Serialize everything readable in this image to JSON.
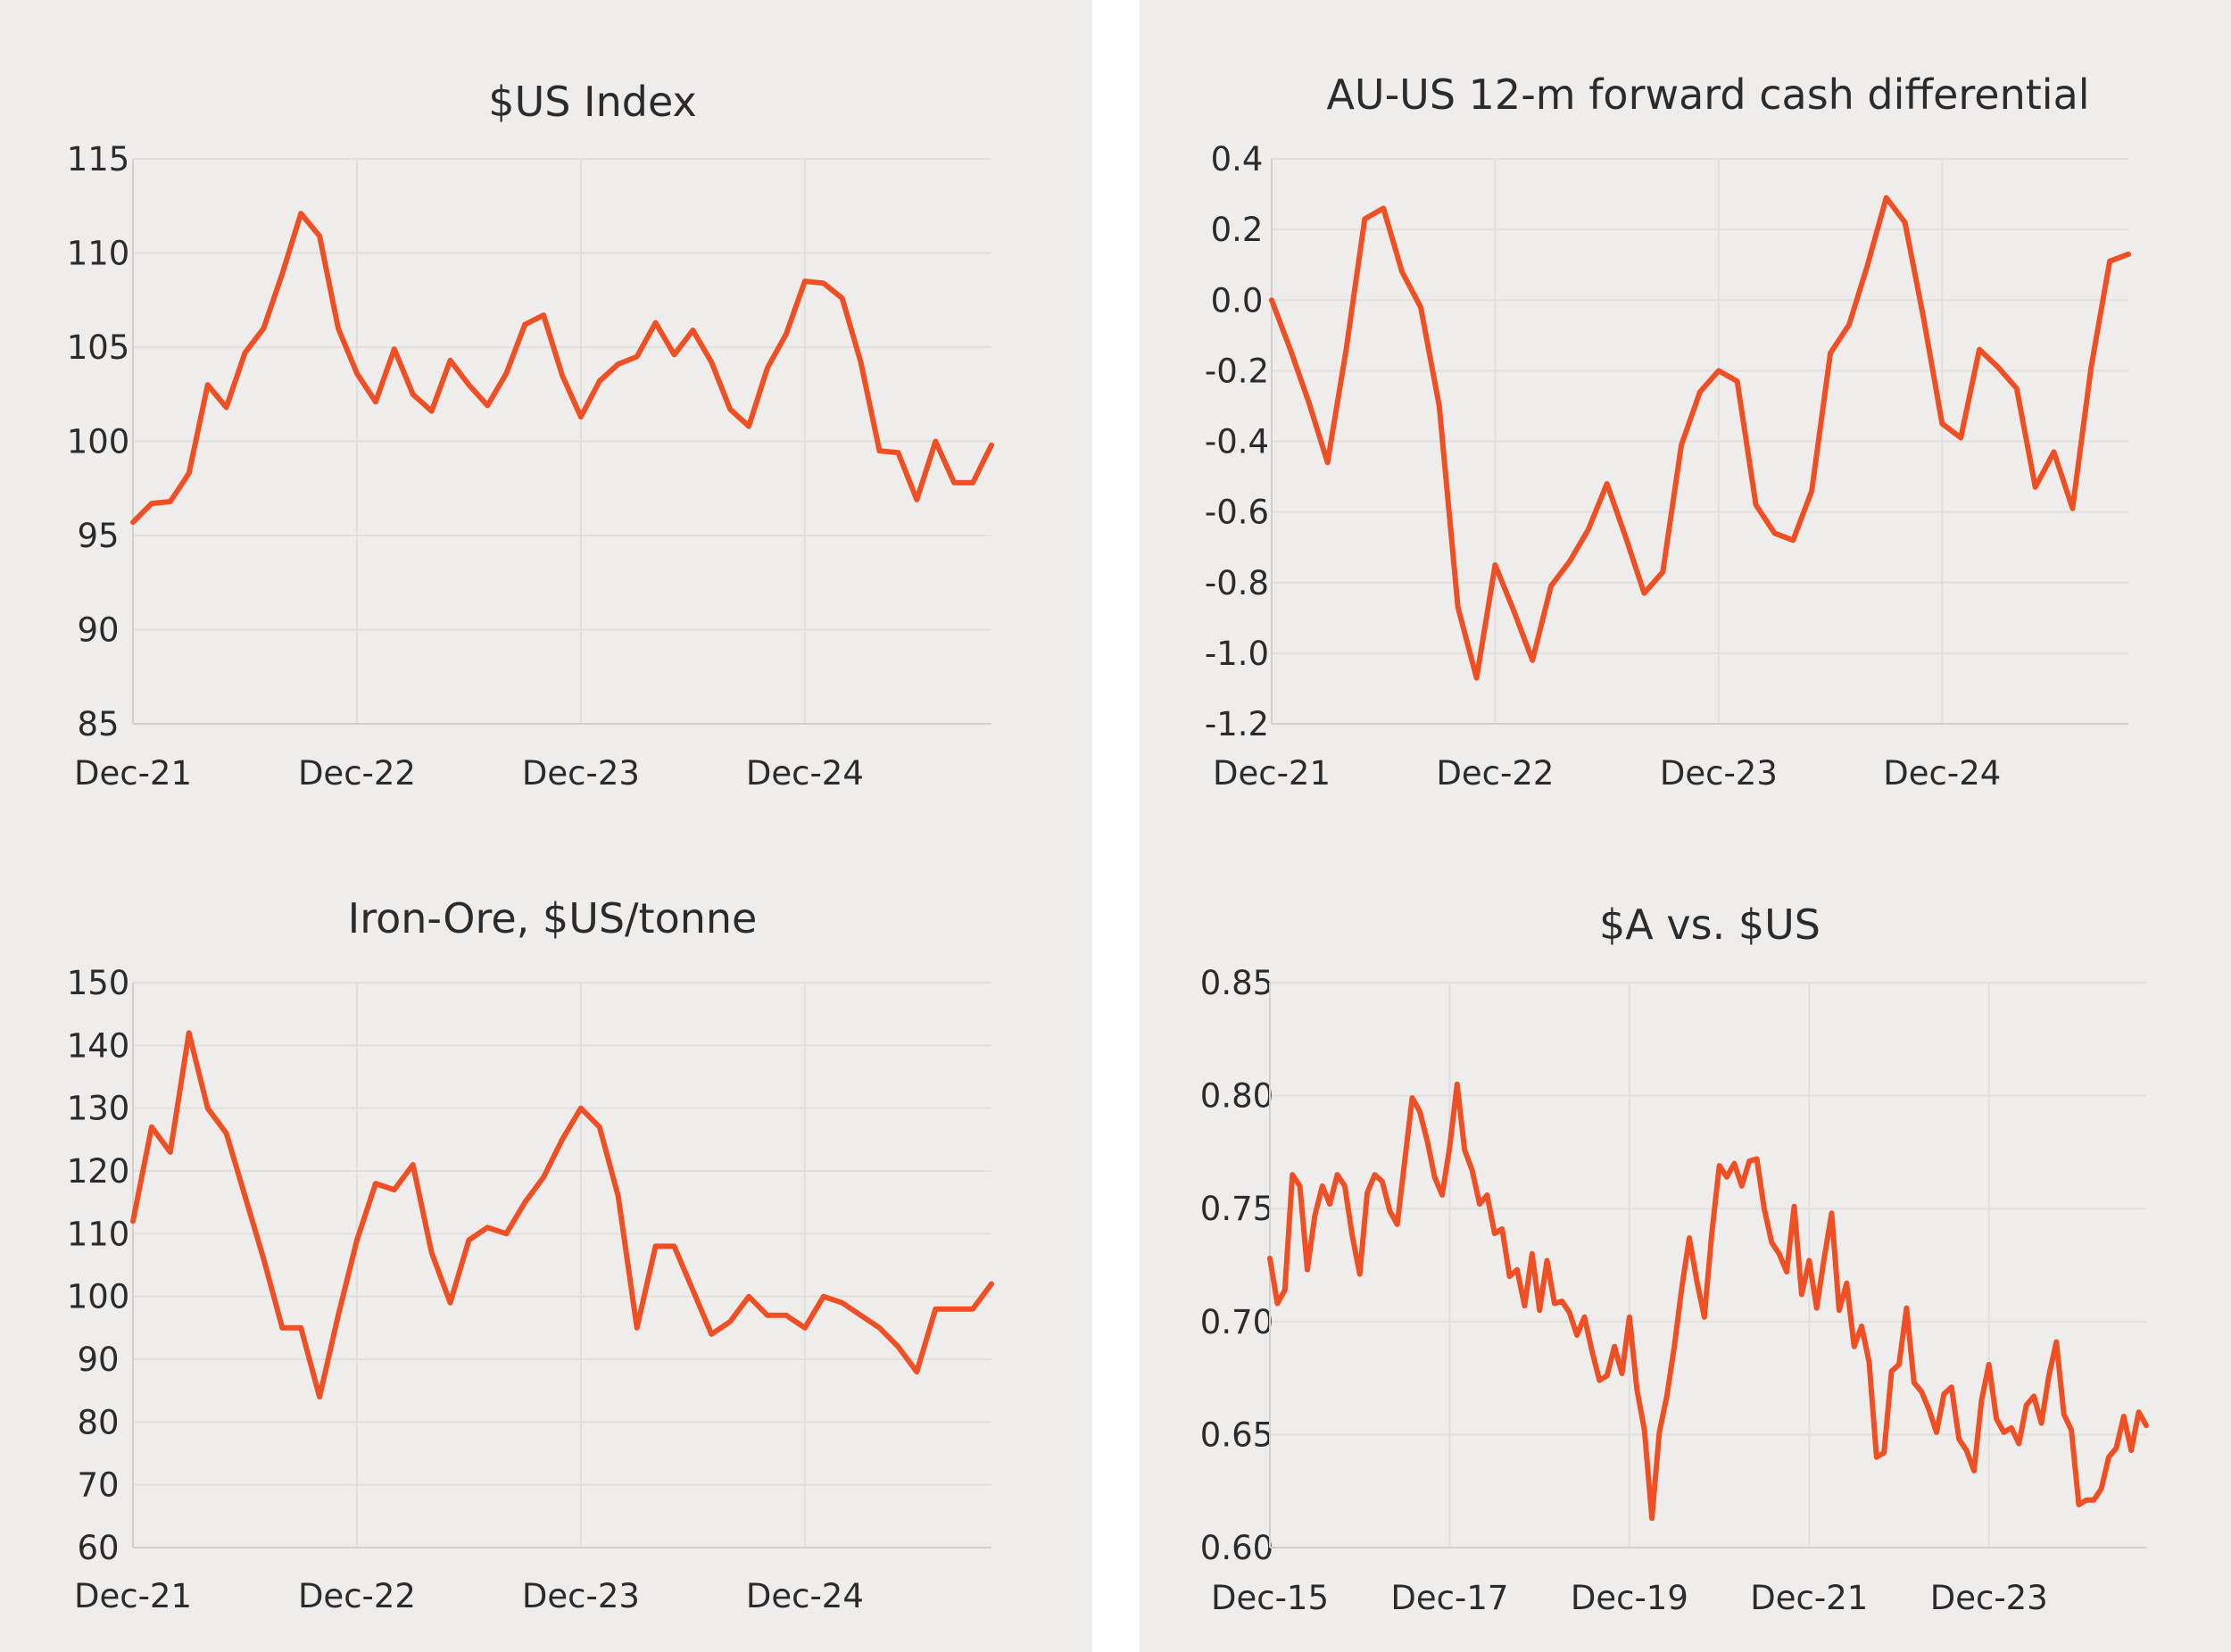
{
  "colors": {
    "line": "#f04e23",
    "panel": "#efedec",
    "text": "#2b2b2b",
    "grid": "#e1dfde"
  },
  "chart_data": [
    {
      "type": "line",
      "title": "$US Index",
      "xlabel": "",
      "ylabel": "",
      "ylim": [
        85,
        115
      ],
      "yticks": [
        "115",
        "110",
        "105",
        "100",
        "95",
        "90",
        "85"
      ],
      "xticks": [
        "Dec-21",
        "Dec-22",
        "Dec-23",
        "Dec-24"
      ],
      "x_range_months": [
        0,
        46
      ],
      "series": [
        {
          "name": "$US Index",
          "values": [
            95.7,
            96.7,
            96.8,
            98.3,
            103.0,
            101.8,
            104.7,
            106.0,
            108.9,
            112.1,
            110.9,
            106.0,
            103.6,
            102.1,
            104.9,
            102.5,
            101.6,
            104.3,
            103.0,
            101.9,
            103.6,
            106.2,
            106.7,
            103.5,
            101.3,
            103.2,
            104.1,
            104.5,
            106.3,
            104.6,
            105.9,
            104.2,
            101.7,
            100.8,
            103.9,
            105.7,
            108.5,
            108.4,
            107.6,
            104.2,
            99.5,
            99.4,
            96.9,
            100.0,
            97.8,
            97.8,
            99.8
          ]
        }
      ]
    },
    {
      "type": "line",
      "title": "AU-US 12-m forward cash differential",
      "xlabel": "",
      "ylabel": "",
      "ylim": [
        -1.2,
        0.4
      ],
      "yticks": [
        "0.4",
        "0.2",
        "0.0",
        "-0.2",
        "-0.4",
        "-0.6",
        "-0.8",
        "-1.0",
        "-1.2"
      ],
      "xticks": [
        "Dec-21",
        "Dec-22",
        "Dec-23",
        "Dec-24"
      ],
      "x_range_months": [
        0,
        46
      ],
      "series": [
        {
          "name": "AU-US 12-m forward cash differential",
          "values": [
            0.0,
            -0.14,
            -0.29,
            -0.46,
            -0.14,
            0.23,
            0.26,
            0.08,
            -0.02,
            -0.3,
            -0.87,
            -1.07,
            -0.75,
            -0.88,
            -1.02,
            -0.81,
            -0.74,
            -0.65,
            -0.52,
            -0.67,
            -0.83,
            -0.77,
            -0.41,
            -0.26,
            -0.2,
            -0.23,
            -0.58,
            -0.66,
            -0.68,
            -0.54,
            -0.15,
            -0.07,
            0.1,
            0.29,
            0.22,
            -0.05,
            -0.35,
            -0.39,
            -0.14,
            -0.19,
            -0.25,
            -0.53,
            -0.43,
            -0.59,
            -0.19,
            0.11,
            0.13
          ]
        }
      ]
    },
    {
      "type": "line",
      "title": "Iron-Ore, $US/tonne",
      "xlabel": "",
      "ylabel": "",
      "ylim": [
        60,
        150
      ],
      "yticks": [
        "150",
        "140",
        "130",
        "120",
        "110",
        "100",
        "90",
        "80",
        "70",
        "60"
      ],
      "xticks": [
        "Dec-21",
        "Dec-22",
        "Dec-23",
        "Dec-24"
      ],
      "x_range_months": [
        0,
        46
      ],
      "series": [
        {
          "name": "Iron-Ore",
          "values": [
            112,
            127,
            123,
            142,
            130,
            126,
            116,
            106,
            95,
            95,
            84,
            97,
            109,
            118,
            117,
            121,
            107,
            99,
            109,
            111,
            110,
            115,
            119,
            125,
            130,
            127,
            116,
            95,
            108,
            108,
            101,
            94,
            96,
            100,
            97,
            97,
            95,
            100,
            99,
            97,
            95,
            92,
            88,
            98,
            98,
            98,
            102
          ]
        }
      ]
    },
    {
      "type": "line",
      "title": "$A vs. $US",
      "xlabel": "",
      "ylabel": "",
      "ylim": [
        0.6,
        0.85
      ],
      "yticks": [
        "0.85",
        "0.80",
        "0.75",
        "0.70",
        "0.65",
        "0.60"
      ],
      "xticks": [
        "Dec-15",
        "Dec-17",
        "Dec-19",
        "Dec-21",
        "Dec-23"
      ],
      "x_range_months": [
        0,
        117
      ],
      "series": [
        {
          "name": "$A vs. $US",
          "values": [
            0.728,
            0.708,
            0.714,
            0.765,
            0.76,
            0.723,
            0.747,
            0.76,
            0.752,
            0.765,
            0.76,
            0.738,
            0.721,
            0.757,
            0.765,
            0.762,
            0.749,
            0.743,
            0.771,
            0.799,
            0.793,
            0.78,
            0.764,
            0.756,
            0.777,
            0.805,
            0.776,
            0.767,
            0.752,
            0.756,
            0.739,
            0.741,
            0.72,
            0.723,
            0.707,
            0.73,
            0.705,
            0.727,
            0.708,
            0.709,
            0.704,
            0.694,
            0.702,
            0.687,
            0.674,
            0.676,
            0.689,
            0.677,
            0.702,
            0.67,
            0.652,
            0.613,
            0.651,
            0.667,
            0.689,
            0.715,
            0.737,
            0.718,
            0.702,
            0.739,
            0.769,
            0.764,
            0.77,
            0.76,
            0.771,
            0.772,
            0.75,
            0.735,
            0.73,
            0.722,
            0.751,
            0.712,
            0.727,
            0.706,
            0.728,
            0.748,
            0.705,
            0.717,
            0.689,
            0.698,
            0.682,
            0.64,
            0.642,
            0.678,
            0.681,
            0.706,
            0.673,
            0.669,
            0.661,
            0.651,
            0.668,
            0.671,
            0.648,
            0.643,
            0.634,
            0.665,
            0.681,
            0.657,
            0.651,
            0.653,
            0.646,
            0.663,
            0.667,
            0.655,
            0.676,
            0.691,
            0.659,
            0.652,
            0.619,
            0.621,
            0.621,
            0.626,
            0.64,
            0.644,
            0.658,
            0.643,
            0.66,
            0.654
          ]
        }
      ]
    }
  ]
}
